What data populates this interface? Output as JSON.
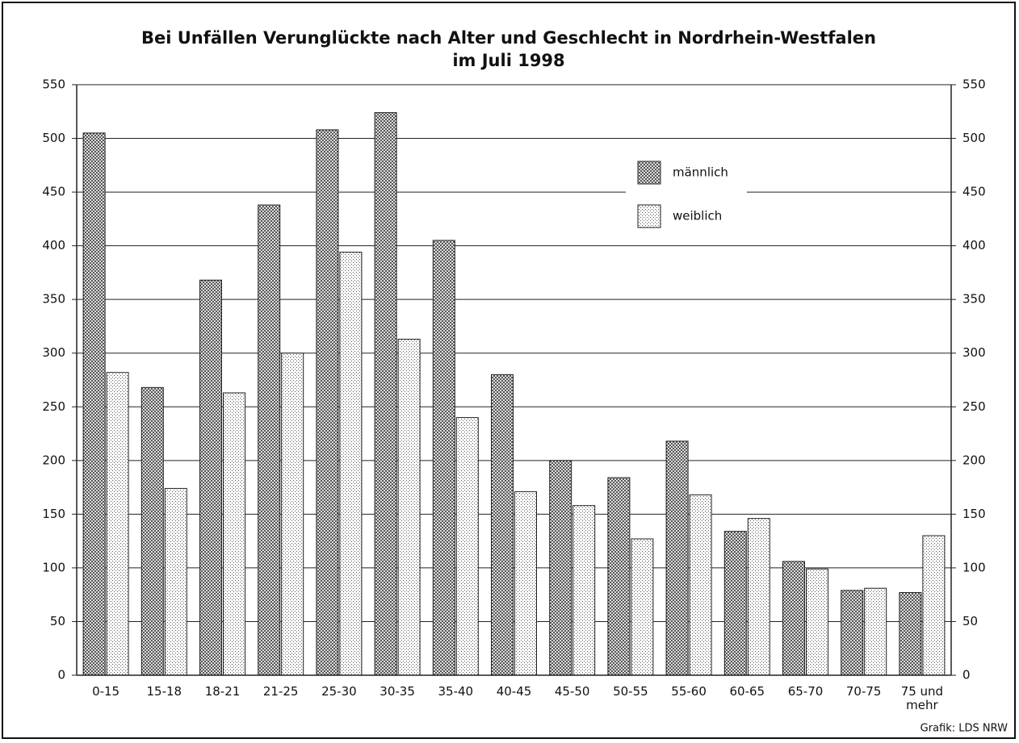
{
  "chart_data": {
    "type": "bar",
    "title": "Bei Unfällen Verunglückte nach Alter und Geschlecht in Nordrhein-Westfalen",
    "subtitle": "im Juli 1998",
    "categories": [
      "0-15",
      "15-18",
      "18-21",
      "21-25",
      "25-30",
      "30-35",
      "35-40",
      "40-45",
      "45-50",
      "50-55",
      "55-60",
      "60-65",
      "65-70",
      "70-75",
      "75 und mehr"
    ],
    "series": [
      {
        "name": "männlich",
        "color": "#333333",
        "values": [
          505,
          268,
          368,
          438,
          508,
          524,
          405,
          280,
          200,
          184,
          218,
          134,
          106,
          79,
          77
        ]
      },
      {
        "name": "weiblich",
        "color": "#bbbbbb",
        "values": [
          282,
          174,
          263,
          300,
          394,
          313,
          240,
          171,
          158,
          127,
          168,
          146,
          99,
          81,
          130
        ]
      }
    ],
    "ylim": [
      0,
      550
    ],
    "yticks": [
      0,
      50,
      100,
      150,
      200,
      250,
      300,
      350,
      400,
      450,
      500,
      550
    ],
    "grid": true,
    "legend": "top-right",
    "source": "Grafik: LDS NRW"
  }
}
